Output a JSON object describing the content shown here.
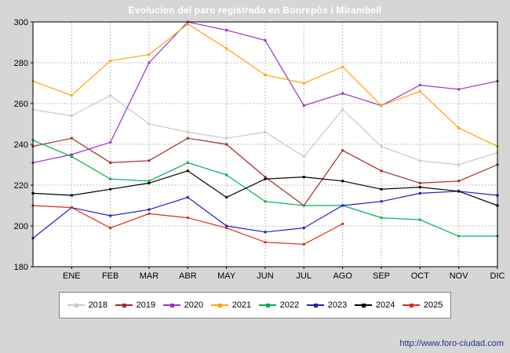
{
  "title": "Evolucion del paro registrado en Bonrepòs i Mirambell",
  "footer": {
    "url": "http://www.foro-ciudad.com"
  },
  "chart_data": {
    "type": "line",
    "title": "Evolucion del paro registrado en Bonrepòs i Mirambell",
    "xlabel": "",
    "ylabel": "",
    "ylim": [
      180,
      300
    ],
    "yticks": [
      180,
      200,
      220,
      240,
      260,
      280,
      300
    ],
    "grid": true,
    "legend_position": "bottom",
    "x_note": "13 values per series: first value sits on the left axis, then one value per month tick ENE..DIC",
    "months": [
      "ENE",
      "FEB",
      "MAR",
      "ABR",
      "MAY",
      "JUN",
      "JUL",
      "AGO",
      "SEP",
      "OCT",
      "NOV",
      "DIC"
    ],
    "series": [
      {
        "name": "2018",
        "color": "#c8c8c8",
        "values": [
          257,
          254,
          264,
          250,
          246,
          243,
          246,
          234,
          257,
          239,
          232,
          230,
          236
        ]
      },
      {
        "name": "2019",
        "color": "#a52a2a",
        "values": [
          239,
          243,
          231,
          232,
          243,
          240,
          224,
          210,
          237,
          227,
          221,
          222,
          230
        ]
      },
      {
        "name": "2020",
        "color": "#9933cc",
        "values": [
          231,
          235,
          241,
          280,
          300,
          296,
          291,
          259,
          265,
          259,
          269,
          267,
          271
        ]
      },
      {
        "name": "2021",
        "color": "#ffa500",
        "values": [
          271,
          264,
          281,
          284,
          299,
          287,
          274,
          270,
          278,
          259,
          266,
          248,
          239
        ]
      },
      {
        "name": "2022",
        "color": "#00b050",
        "values": [
          242,
          234,
          223,
          222,
          231,
          225,
          212,
          210,
          210,
          204,
          203,
          195,
          195
        ]
      },
      {
        "name": "2023",
        "color": "#2020c0",
        "values": [
          194,
          209,
          205,
          208,
          214,
          200,
          197,
          199,
          210,
          212,
          216,
          217,
          215
        ]
      },
      {
        "name": "2024",
        "color": "#000000",
        "values": [
          216,
          215,
          218,
          221,
          227,
          214,
          223,
          224,
          222,
          218,
          219,
          217,
          210
        ]
      },
      {
        "name": "2025",
        "color": "#e02b18",
        "values": [
          210,
          209,
          199,
          206,
          204,
          199,
          192,
          191,
          201,
          null,
          null,
          null,
          null
        ]
      }
    ]
  }
}
